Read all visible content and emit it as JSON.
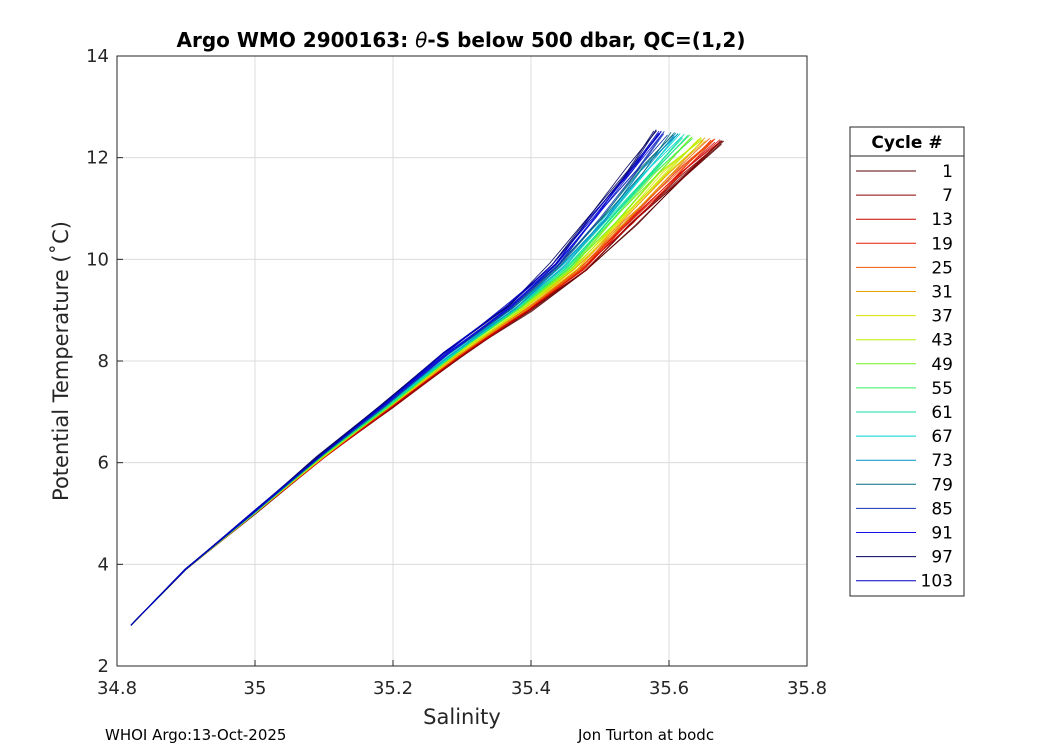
{
  "chart_data": {
    "type": "line",
    "title_prefix": "Argo WMO 2900163: ",
    "title_theta": "θ",
    "title_suffix": "-S below 500 dbar,  QC=(1,2)",
    "xlabel": "Salinity",
    "ylabel": "Potential Temperature (˚C)",
    "xlim": [
      34.8,
      35.8
    ],
    "ylim": [
      2,
      14
    ],
    "xticks": [
      34.8,
      35,
      35.2,
      35.4,
      35.6,
      35.8
    ],
    "xtick_labels": [
      "34.8",
      "35",
      "35.2",
      "35.4",
      "35.6",
      "35.8"
    ],
    "yticks": [
      2,
      4,
      6,
      8,
      10,
      12,
      14
    ],
    "ytick_labels": [
      "2",
      "4",
      "6",
      "8",
      "10",
      "12",
      "14"
    ],
    "grid": true,
    "legend": {
      "title": "Cycle #",
      "placement": "right",
      "entries": [
        "1",
        "7",
        "13",
        "19",
        "25",
        "31",
        "37",
        "43",
        "49",
        "55",
        "61",
        "67",
        "73",
        "79",
        "85",
        "91",
        "97",
        "103"
      ]
    },
    "series": [
      {
        "name": "1",
        "color": "#5a0000",
        "offset": 0.0
      },
      {
        "name": "7",
        "color": "#8b0000",
        "offset": 0.003
      },
      {
        "name": "13",
        "color": "#cc0000",
        "offset": 0.006
      },
      {
        "name": "19",
        "color": "#e81c00",
        "offset": 0.009
      },
      {
        "name": "25",
        "color": "#f05a00",
        "offset": 0.012
      },
      {
        "name": "31",
        "color": "#e8a000",
        "offset": 0.016
      },
      {
        "name": "37",
        "color": "#e0e000",
        "offset": 0.02
      },
      {
        "name": "43",
        "color": "#b8f000",
        "offset": 0.024
      },
      {
        "name": "49",
        "color": "#70f020",
        "offset": 0.028
      },
      {
        "name": "55",
        "color": "#30f060",
        "offset": 0.032
      },
      {
        "name": "61",
        "color": "#10e0a0",
        "offset": 0.036
      },
      {
        "name": "67",
        "color": "#00d0d0",
        "offset": 0.04
      },
      {
        "name": "73",
        "color": "#0090c8",
        "offset": 0.044
      },
      {
        "name": "79",
        "color": "#006a80",
        "offset": 0.048
      },
      {
        "name": "85",
        "color": "#1030b0",
        "offset": 0.052
      },
      {
        "name": "91",
        "color": "#1010e0",
        "offset": 0.056
      },
      {
        "name": "97",
        "color": "#000060",
        "offset": 0.062
      },
      {
        "name": "103",
        "color": "#0000c0",
        "offset": 0.06
      }
    ],
    "base_profile": {
      "salinity": [
        34.82,
        34.9,
        35.0,
        35.1,
        35.2,
        35.3,
        35.4,
        35.48,
        35.55,
        35.62,
        35.68
      ],
      "temperature": [
        2.8,
        3.9,
        5.0,
        6.1,
        7.1,
        8.1,
        9.0,
        9.8,
        10.7,
        11.6,
        12.3
      ]
    }
  },
  "footer": {
    "left": "WHOI Argo:13-Oct-2025",
    "right": "Jon Turton at bodc"
  }
}
